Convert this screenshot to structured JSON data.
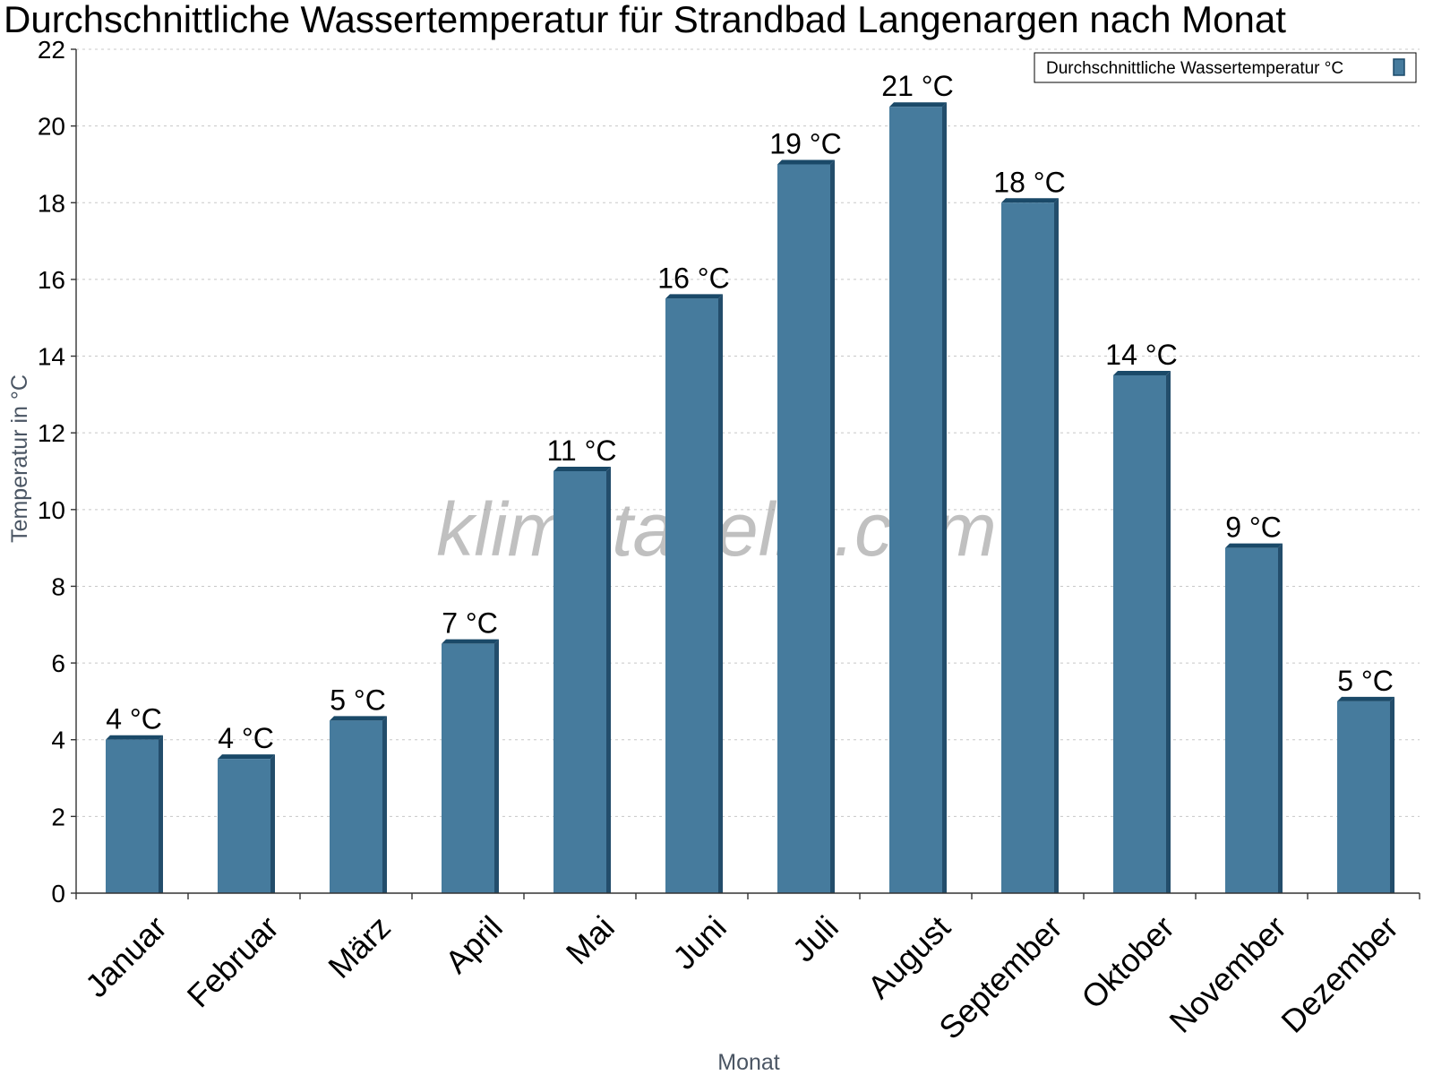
{
  "chart_data": {
    "type": "bar",
    "title": "Durchschnittliche Wassertemperatur für Strandbad Langenargen nach Monat",
    "xlabel": "Monat",
    "ylabel": "Temperatur in °C",
    "categories": [
      "Januar",
      "Februar",
      "März",
      "April",
      "Mai",
      "Juni",
      "Juli",
      "August",
      "September",
      "Oktober",
      "November",
      "Dezember"
    ],
    "series": [
      {
        "name": "Durchschnittliche Wassertemperatur °C",
        "values": [
          4.0,
          3.5,
          4.5,
          6.5,
          11.0,
          15.5,
          19.0,
          20.5,
          18.0,
          13.5,
          9.0,
          5.0
        ],
        "labels": [
          "4 °C",
          "4 °C",
          "5 °C",
          "7 °C",
          "11 °C",
          "16 °C",
          "19 °C",
          "21 °C",
          "18 °C",
          "14 °C",
          "9 °C",
          "5 °C"
        ]
      }
    ],
    "ylim": [
      0,
      22
    ],
    "yticks": [
      0,
      2,
      4,
      6,
      8,
      10,
      12,
      14,
      16,
      18,
      20,
      22
    ],
    "grid": true,
    "legend_position": "top-right",
    "colors": {
      "bar": "#467b9d",
      "bar_side": "#234d6b",
      "bar_top": "#1a4968"
    },
    "watermark": "klimatabelle.com"
  }
}
